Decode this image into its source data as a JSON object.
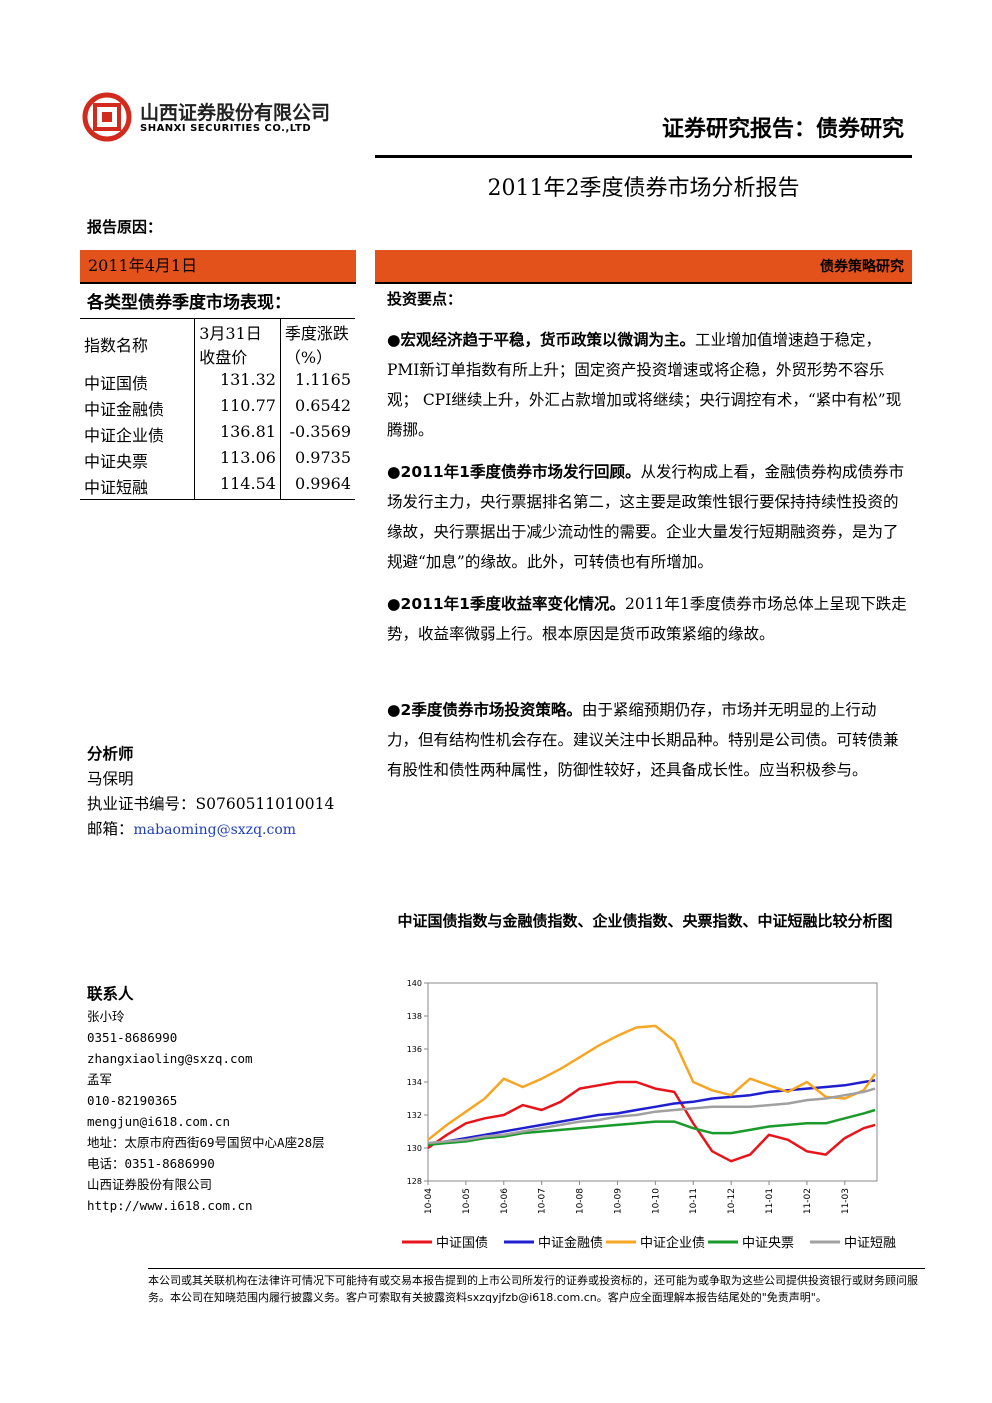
{
  "header": {
    "company_cn": "山西证券股份有限公司",
    "company_en": "SHANXI SECURITIES CO.,LTD",
    "report_type": "证券研究报告：债券研究"
  },
  "title": "2011年2季度债券市场分析报告",
  "reason_label": "报告原因：",
  "date": "2011年4月1日",
  "section_tag": "债券策略研究",
  "table": {
    "title": "各类型债券季度市场表现：",
    "header": [
      "指数名称",
      "3月31日收盘价",
      "季度涨跌（%）"
    ],
    "rows": [
      [
        "中证国债",
        131.32,
        1.1165
      ],
      [
        "中证金融债",
        110.77,
        0.6542
      ],
      [
        "中证企业债",
        136.81,
        -0.3569
      ],
      [
        "中证央票",
        113.06,
        0.9735
      ],
      [
        "中证短融",
        114.54,
        0.9964
      ]
    ]
  },
  "analyst": {
    "heading": "分析师",
    "name": "马保明",
    "cert": "执业证书编号：S0760511010014",
    "email_label": "邮箱：",
    "email": "mabaoming@sxzq.com"
  },
  "contact": {
    "heading": "联系人",
    "lines": [
      "张小玲",
      "0351-8686990",
      "zhangxiaoling@sxzq.com",
      "孟军",
      "010-82190365",
      "mengjun@i618.com.cn",
      "地址：太原市府西街69号国贸中心A座28层",
      "电话：0351-8686990",
      "山西证券股份有限公司",
      "http://www.i618.com.cn"
    ]
  },
  "points": {
    "heading": "投资要点：",
    "items": [
      {
        "lead": "宏观经济趋于平稳，货币政策以微调为主。",
        "text": "工业增加值增速趋于稳定，PMI新订单指数有所上升；固定资产投资增速或将企稳，外贸形势不容乐观； CPI继续上升，外汇占款增加或将继续；央行调控有术，“紧中有松”现腾挪。"
      },
      {
        "lead": "2011年1季度债券市场发行回顾。",
        "text": "从发行构成上看，金融债券构成债券市场发行主力，央行票据排名第二，这主要是政策性银行要保持持续性投资的缘故，央行票据出于减少流动性的需要。企业大量发行短期融资券，是为了规避“加息”的缘故。此外，可转债也有所增加。"
      },
      {
        "lead": "2011年1季度收益率变化情况。",
        "text": "2011年1季度债券市场总体上呈现下跌走势，收益率微弱上行。根本原因是货币政策紧缩的缘故。"
      },
      {
        "lead": "2季度债券市场投资策略。",
        "text": "由于紧缩预期仍存，市场并无明显的上行动力，但有结构性机会存在。建议关注中长期品种。特别是公司债。可转债兼有股性和债性两种属性，防御性较好，还具备成长性。应当积极参与。"
      }
    ]
  },
  "disclaimer": "本公司或其关联机构在法律许可情况下可能持有或交易本报告提到的上市公司所发行的证券或投资标的，还可能为或争取为这些公司提供投资银行或财务顾问服务。本公司在知晓范围内履行披露义务。客户可索取有关披露资料sxzqyjfzb@i618.com.cn。客户应全面理解本报告结尾处的\"免责声明\"。",
  "chart_data": {
    "type": "line",
    "title": "中证国债指数与金融债指数、企业债指数、央票指数、中证短融比较分析图",
    "x": [
      0,
      0.5,
      1,
      1.5,
      2,
      2.5,
      3,
      3.5,
      4,
      4.5,
      5,
      5.5,
      6,
      6.5,
      7,
      7.5,
      8,
      8.5,
      9,
      9.5,
      10,
      10.5,
      11,
      11.5,
      11.8
    ],
    "xlim": [
      0,
      11.85
    ],
    "xticks": [
      {
        "value": 0,
        "label": "10-04"
      },
      {
        "value": 1,
        "label": "10-05"
      },
      {
        "value": 2,
        "label": "10-06"
      },
      {
        "value": 3,
        "label": "10-07"
      },
      {
        "value": 4,
        "label": "10-08"
      },
      {
        "value": 5,
        "label": "10-09"
      },
      {
        "value": 6,
        "label": "10-10"
      },
      {
        "value": 7,
        "label": "10-11"
      },
      {
        "value": 8,
        "label": "10-12"
      },
      {
        "value": 9,
        "label": "11-01"
      },
      {
        "value": 10,
        "label": "11-02"
      },
      {
        "value": 11,
        "label": "11-03"
      }
    ],
    "ylim": [
      128,
      140
    ],
    "yticks": [
      128,
      130,
      132,
      134,
      136,
      138,
      140
    ],
    "series": [
      {
        "name": "中证国债",
        "color": "#e8141b",
        "values": [
          130.0,
          130.8,
          131.5,
          131.8,
          132.0,
          132.6,
          132.3,
          132.8,
          133.6,
          133.8,
          134.0,
          134.0,
          133.6,
          133.4,
          131.5,
          129.8,
          129.2,
          129.6,
          130.8,
          130.5,
          129.8,
          129.6,
          130.6,
          131.2,
          131.4
        ]
      },
      {
        "name": "中证金融债",
        "color": "#1f1fd0",
        "values": [
          130.2,
          130.4,
          130.6,
          130.8,
          131.0,
          131.2,
          131.4,
          131.6,
          131.8,
          132.0,
          132.1,
          132.3,
          132.5,
          132.7,
          132.8,
          133.0,
          133.1,
          133.2,
          133.4,
          133.5,
          133.6,
          133.7,
          133.8,
          134.0,
          134.1
        ]
      },
      {
        "name": "中证企业债",
        "color": "#f5a623",
        "values": [
          130.5,
          131.4,
          132.2,
          133.0,
          134.2,
          133.7,
          134.2,
          134.8,
          135.5,
          136.2,
          136.8,
          137.3,
          137.4,
          136.5,
          134.0,
          133.5,
          133.2,
          134.2,
          133.8,
          133.4,
          134.0,
          133.1,
          133.0,
          133.5,
          134.5
        ]
      },
      {
        "name": "中证央票",
        "color": "#1a9a2a",
        "values": [
          130.2,
          130.3,
          130.4,
          130.6,
          130.7,
          130.9,
          131.0,
          131.1,
          131.2,
          131.3,
          131.4,
          131.5,
          131.6,
          131.6,
          131.2,
          130.9,
          130.9,
          131.1,
          131.3,
          131.4,
          131.5,
          131.5,
          131.8,
          132.1,
          132.3
        ]
      },
      {
        "name": "中证短融",
        "color": "#a0a0a0",
        "values": [
          130.3,
          130.4,
          130.5,
          130.7,
          130.8,
          131.0,
          131.2,
          131.4,
          131.6,
          131.7,
          131.9,
          132.0,
          132.2,
          132.3,
          132.4,
          132.5,
          132.5,
          132.5,
          132.6,
          132.7,
          132.9,
          133.0,
          133.2,
          133.4,
          133.6
        ]
      }
    ]
  }
}
